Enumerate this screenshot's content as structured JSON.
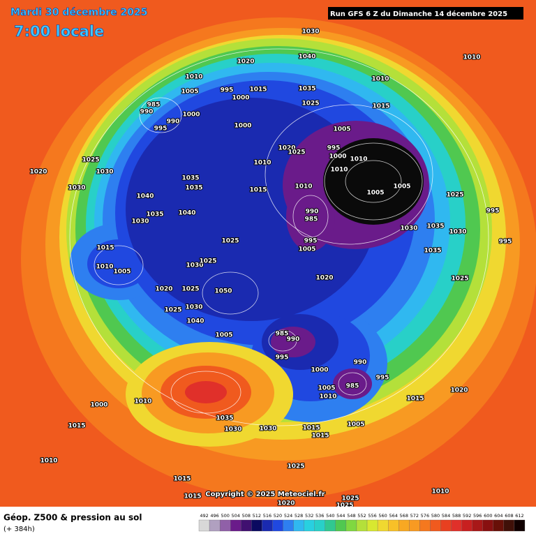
{
  "header": {
    "date": "Mardi 30 décembre 2025",
    "time": "7:00 locale",
    "run": "Run GFS 6 Z du Dimanche 14 décembre 2025"
  },
  "copyright": "Copyright © 2025 Meteociel.fr",
  "footer": {
    "title": "Géop. Z500 & pression au sol",
    "subtitle": "(+ 384h)"
  },
  "legend": {
    "values": [
      492,
      496,
      500,
      504,
      508,
      512,
      516,
      520,
      524,
      528,
      532,
      536,
      540,
      544,
      548,
      552,
      556,
      560,
      564,
      568,
      572,
      576,
      580,
      584,
      588,
      592,
      596,
      600,
      604,
      608,
      612
    ]
  },
  "pressure_labels": [
    "1030",
    "1040",
    "1020",
    "1010",
    "1010",
    "1010",
    "1005",
    "995",
    "1000",
    "1015",
    "1035",
    "1025",
    "985",
    "990",
    "1000",
    "990",
    "995",
    "1000",
    "1015",
    "1005",
    "1020",
    "1025",
    "995",
    "1000",
    "1010",
    "1010",
    "1025",
    "1030",
    "1020",
    "1030",
    "1010",
    "1035",
    "1035",
    "1010",
    "1015",
    "1005",
    "1005",
    "1025",
    "995",
    "1040",
    "1035",
    "1040",
    "1030",
    "990",
    "985",
    "1030",
    "1035",
    "1030",
    "995",
    "1015",
    "1025",
    "1005",
    "995",
    "1010",
    "1005",
    "1030",
    "1025",
    "1020",
    "1035",
    "1025",
    "1020",
    "1025",
    "1050",
    "1025",
    "1030",
    "1040",
    "1005",
    "985",
    "990",
    "995",
    "1000",
    "990",
    "995",
    "985",
    "1005",
    "1010",
    "1015",
    "1020",
    "1000",
    "1010",
    "1035",
    "1030",
    "1030",
    "1015",
    "1015",
    "1005",
    "1015",
    "1010",
    "1025",
    "1015",
    "1015",
    "1020",
    "1025",
    "1025",
    "1010"
  ]
}
